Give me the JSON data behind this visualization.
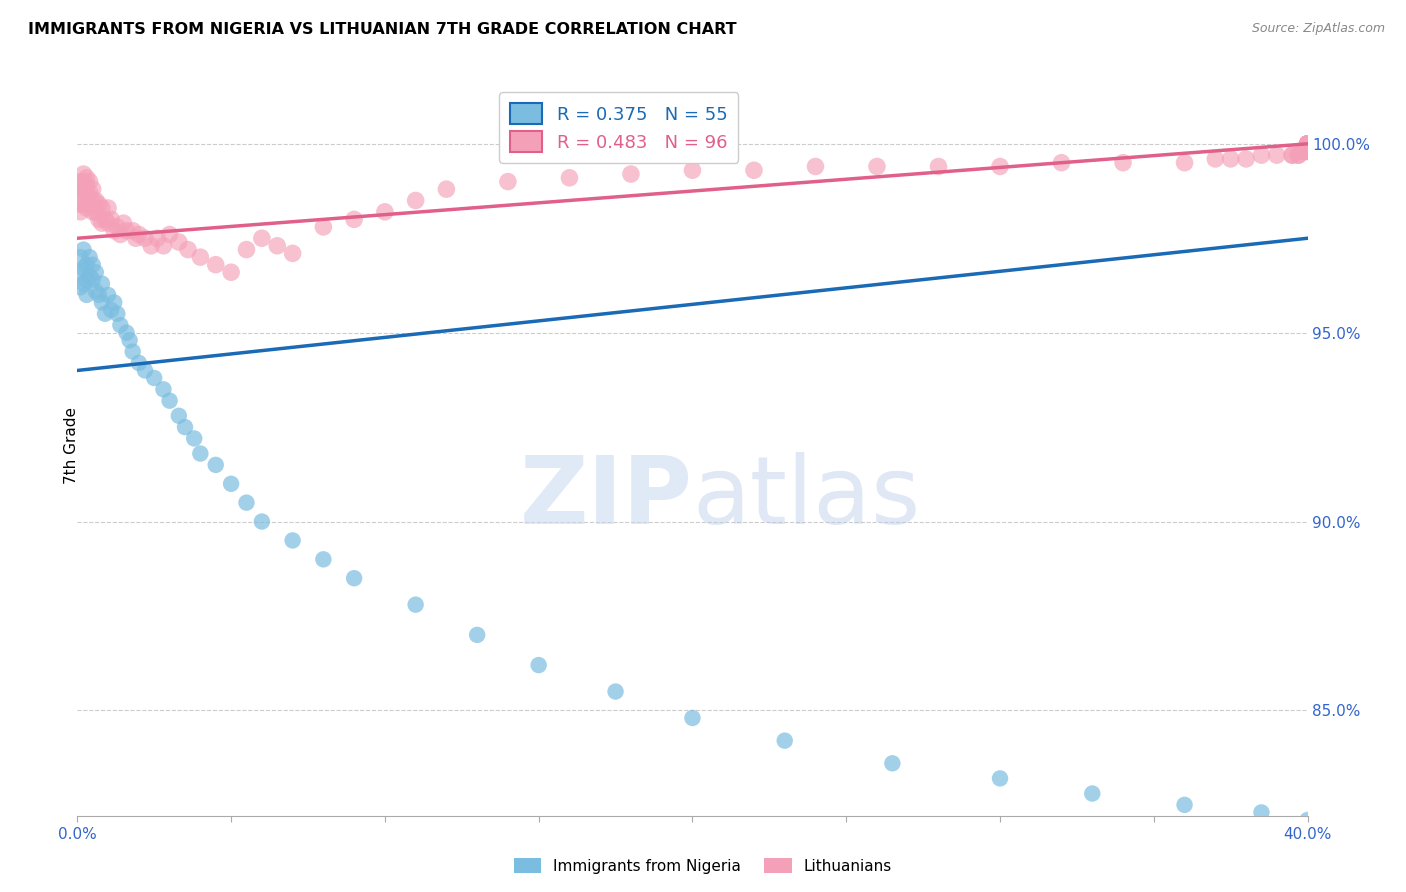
{
  "title": "IMMIGRANTS FROM NIGERIA VS LITHUANIAN 7TH GRADE CORRELATION CHART",
  "source": "Source: ZipAtlas.com",
  "ylabel": "7th Grade",
  "ytick_labels": [
    "85.0%",
    "90.0%",
    "95.0%",
    "100.0%"
  ],
  "ytick_values": [
    0.85,
    0.9,
    0.95,
    1.0
  ],
  "xmin": 0.0,
  "xmax": 0.4,
  "ymin": 0.822,
  "ymax": 1.018,
  "grid_color": "#cccccc",
  "legend1_label": "Immigrants from Nigeria",
  "legend2_label": "Lithuanians",
  "r1": 0.375,
  "n1": 55,
  "r2": 0.483,
  "n2": 96,
  "color_nigeria": "#7bbde0",
  "color_lithuanian": "#f4a0b8",
  "color_line_nigeria": "#1a6ab5",
  "color_line_lithuanian": "#e0608a",
  "watermark_zip": "ZIP",
  "watermark_atlas": "atlas",
  "nigeria_x": [
    0.001,
    0.001,
    0.001,
    0.002,
    0.002,
    0.002,
    0.003,
    0.003,
    0.003,
    0.004,
    0.004,
    0.005,
    0.005,
    0.006,
    0.006,
    0.007,
    0.008,
    0.008,
    0.009,
    0.01,
    0.011,
    0.012,
    0.013,
    0.014,
    0.016,
    0.017,
    0.018,
    0.02,
    0.022,
    0.025,
    0.028,
    0.03,
    0.033,
    0.035,
    0.038,
    0.04,
    0.045,
    0.05,
    0.055,
    0.06,
    0.07,
    0.08,
    0.09,
    0.11,
    0.13,
    0.15,
    0.175,
    0.2,
    0.23,
    0.265,
    0.3,
    0.33,
    0.36,
    0.385,
    0.4
  ],
  "nigeria_y": [
    0.97,
    0.966,
    0.962,
    0.972,
    0.967,
    0.963,
    0.968,
    0.964,
    0.96,
    0.97,
    0.965,
    0.968,
    0.964,
    0.966,
    0.961,
    0.96,
    0.963,
    0.958,
    0.955,
    0.96,
    0.956,
    0.958,
    0.955,
    0.952,
    0.95,
    0.948,
    0.945,
    0.942,
    0.94,
    0.938,
    0.935,
    0.932,
    0.928,
    0.925,
    0.922,
    0.918,
    0.915,
    0.91,
    0.905,
    0.9,
    0.895,
    0.89,
    0.885,
    0.878,
    0.87,
    0.862,
    0.855,
    0.848,
    0.842,
    0.836,
    0.832,
    0.828,
    0.825,
    0.823,
    0.821
  ],
  "lithuanian_x": [
    0.001,
    0.001,
    0.001,
    0.001,
    0.001,
    0.002,
    0.002,
    0.002,
    0.002,
    0.003,
    0.003,
    0.003,
    0.003,
    0.004,
    0.004,
    0.004,
    0.005,
    0.005,
    0.005,
    0.006,
    0.006,
    0.007,
    0.007,
    0.008,
    0.008,
    0.009,
    0.01,
    0.01,
    0.011,
    0.012,
    0.013,
    0.014,
    0.015,
    0.016,
    0.018,
    0.019,
    0.02,
    0.022,
    0.024,
    0.026,
    0.028,
    0.03,
    0.033,
    0.036,
    0.04,
    0.045,
    0.05,
    0.055,
    0.06,
    0.065,
    0.07,
    0.08,
    0.09,
    0.1,
    0.11,
    0.12,
    0.14,
    0.16,
    0.18,
    0.2,
    0.22,
    0.24,
    0.26,
    0.28,
    0.3,
    0.32,
    0.34,
    0.36,
    0.37,
    0.375,
    0.38,
    0.385,
    0.39,
    0.395,
    0.395,
    0.397,
    0.397,
    0.398,
    0.399,
    0.399,
    0.4,
    0.4,
    0.4,
    0.4,
    0.4,
    0.4,
    0.4,
    0.4,
    0.4,
    0.4,
    0.4,
    0.4,
    0.4,
    0.4,
    0.4,
    0.4
  ],
  "lithuanian_y": [
    0.99,
    0.988,
    0.986,
    0.984,
    0.982,
    0.992,
    0.99,
    0.988,
    0.984,
    0.991,
    0.989,
    0.987,
    0.983,
    0.99,
    0.987,
    0.984,
    0.988,
    0.985,
    0.982,
    0.985,
    0.982,
    0.984,
    0.98,
    0.983,
    0.979,
    0.98,
    0.983,
    0.979,
    0.98,
    0.977,
    0.978,
    0.976,
    0.979,
    0.977,
    0.977,
    0.975,
    0.976,
    0.975,
    0.973,
    0.975,
    0.973,
    0.976,
    0.974,
    0.972,
    0.97,
    0.968,
    0.966,
    0.972,
    0.975,
    0.973,
    0.971,
    0.978,
    0.98,
    0.982,
    0.985,
    0.988,
    0.99,
    0.991,
    0.992,
    0.993,
    0.993,
    0.994,
    0.994,
    0.994,
    0.994,
    0.995,
    0.995,
    0.995,
    0.996,
    0.996,
    0.996,
    0.997,
    0.997,
    0.997,
    0.997,
    0.997,
    0.997,
    0.998,
    0.998,
    0.998,
    0.998,
    0.998,
    0.998,
    0.999,
    0.999,
    0.999,
    0.999,
    0.999,
    0.999,
    1.0,
    1.0,
    1.0,
    1.0,
    1.0,
    1.0,
    1.0
  ],
  "nigeria_trend_x": [
    0.0,
    0.4
  ],
  "nigeria_trend_y": [
    0.94,
    0.975
  ],
  "lithuanian_trend_x": [
    0.0,
    0.4
  ],
  "lithuanian_trend_y": [
    0.975,
    1.0
  ]
}
